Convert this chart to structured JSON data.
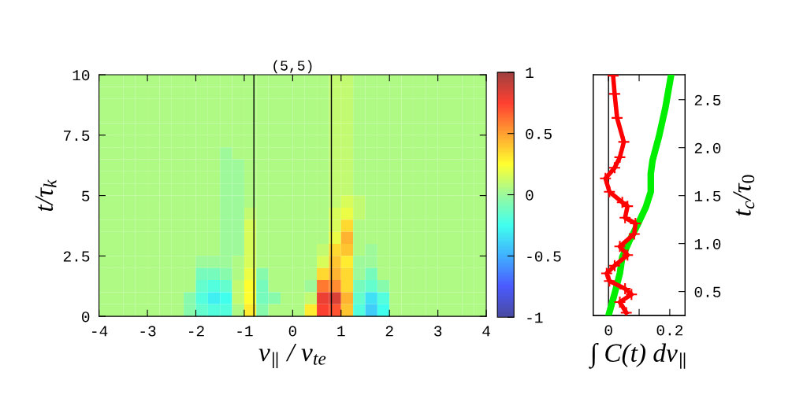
{
  "chart_data": [
    {
      "type": "heatmap",
      "title": "(5,5)",
      "xlabel": "v$_{∥}$ / v$_{te}$",
      "ylabel": "t/τ$_{k}$",
      "x": [
        -3.875,
        -3.625,
        -3.375,
        -3.125,
        -2.875,
        -2.625,
        -2.375,
        -2.125,
        -1.875,
        -1.625,
        -1.375,
        -1.125,
        -0.875,
        -0.625,
        -0.375,
        -0.125,
        0.125,
        0.375,
        0.625,
        0.875,
        1.125,
        1.375,
        1.625,
        1.875,
        2.125,
        2.375,
        2.625,
        2.875,
        3.125,
        3.375,
        3.625,
        3.875
      ],
      "y": [
        9.75,
        9.25,
        8.75,
        8.25,
        7.75,
        7.25,
        6.75,
        6.25,
        5.75,
        5.25,
        4.75,
        4.25,
        3.75,
        3.25,
        2.75,
        2.25,
        1.75,
        1.25,
        0.75,
        0.25
      ],
      "cells": [
        [
          0.05,
          0.05,
          0.05,
          0.05,
          0.05,
          0.05,
          0.05,
          0.05,
          0.05,
          0.05,
          0.05,
          0.05,
          0.05,
          0.05,
          0.05,
          0.05,
          0.05,
          0.05,
          0.05,
          0.1,
          0.1,
          0.05,
          0.05,
          0.05,
          0.05,
          0.05,
          0.05,
          0.05,
          0.05,
          0.05,
          0.05,
          0.05
        ],
        [
          0.05,
          0.05,
          0.05,
          0.05,
          0.05,
          0.05,
          0.05,
          0.05,
          0.05,
          0.05,
          0.05,
          0.05,
          0.05,
          0.05,
          0.05,
          0.05,
          0.05,
          0.05,
          0.05,
          0.1,
          0.1,
          0.05,
          0.05,
          0.05,
          0.05,
          0.05,
          0.05,
          0.05,
          0.05,
          0.05,
          0.05,
          0.05
        ],
        [
          0.05,
          0.05,
          0.05,
          0.05,
          0.05,
          0.05,
          0.05,
          0.05,
          0.05,
          0.05,
          0.05,
          0.05,
          0.05,
          0.05,
          0.05,
          0.05,
          0.05,
          0.05,
          0.05,
          0.1,
          0.1,
          0.05,
          0.05,
          0.05,
          0.05,
          0.05,
          0.05,
          0.05,
          0.05,
          0.05,
          0.05,
          0.05
        ],
        [
          0.05,
          0.05,
          0.05,
          0.05,
          0.05,
          0.05,
          0.05,
          0.05,
          0.05,
          0.05,
          0.05,
          0.05,
          0.05,
          0.05,
          0.05,
          0.05,
          0.05,
          0.05,
          0.05,
          0.1,
          0.1,
          0.05,
          0.05,
          0.05,
          0.05,
          0.05,
          0.05,
          0.05,
          0.05,
          0.05,
          0.05,
          0.05
        ],
        [
          0.05,
          0.05,
          0.05,
          0.05,
          0.05,
          0.05,
          0.05,
          0.05,
          0.05,
          0.05,
          0.05,
          0.05,
          0.05,
          0.05,
          0.05,
          0.05,
          0.05,
          0.05,
          0.05,
          0.1,
          0.1,
          0.05,
          0.05,
          0.05,
          0.05,
          0.05,
          0.05,
          0.05,
          0.05,
          0.05,
          0.05,
          0.05
        ],
        [
          0.05,
          0.05,
          0.05,
          0.05,
          0.05,
          0.05,
          0.05,
          0.05,
          0.05,
          0.05,
          0.05,
          0.05,
          0.05,
          0.05,
          0.05,
          0.05,
          0.05,
          0.05,
          0.05,
          0.1,
          0.1,
          0.05,
          0.05,
          0.05,
          0.05,
          0.05,
          0.05,
          0.05,
          0.05,
          0.05,
          0.05,
          0.05
        ],
        [
          0.05,
          0.05,
          0.05,
          0.05,
          0.05,
          0.05,
          0.05,
          0.05,
          0.05,
          0.05,
          0,
          0.05,
          0.05,
          0.05,
          0.05,
          0.05,
          0.05,
          0.05,
          0.05,
          0.1,
          0.1,
          0.05,
          0.05,
          0.05,
          0.05,
          0.05,
          0.05,
          0.05,
          0.05,
          0.05,
          0.05,
          0.05
        ],
        [
          0.05,
          0.05,
          0.05,
          0.05,
          0.05,
          0.05,
          0.05,
          0.05,
          0.05,
          0.05,
          0,
          0,
          0.05,
          0.05,
          0.05,
          0.05,
          0.05,
          0.05,
          0.05,
          0.1,
          0.1,
          0.05,
          0.05,
          0.05,
          0.05,
          0.05,
          0.05,
          0.05,
          0.05,
          0.05,
          0.05,
          0.05
        ],
        [
          0.05,
          0.05,
          0.05,
          0.05,
          0.05,
          0.05,
          0.05,
          0.05,
          0.05,
          0.05,
          0,
          0,
          0.05,
          0.05,
          0.05,
          0.05,
          0.05,
          0.05,
          0.05,
          0.1,
          0.1,
          0.05,
          0.05,
          0.05,
          0.05,
          0.05,
          0.05,
          0.05,
          0.05,
          0.05,
          0.05,
          0.05
        ],
        [
          0.05,
          0.05,
          0.05,
          0.05,
          0.05,
          0.05,
          0.05,
          0.05,
          0.05,
          0.05,
          0,
          0,
          0.05,
          0.05,
          0.05,
          0.05,
          0.05,
          0.05,
          0.05,
          0.1,
          0.1,
          0.05,
          0.05,
          0.05,
          0.05,
          0.05,
          0.05,
          0.05,
          0.05,
          0.05,
          0.05,
          0.05
        ],
        [
          0.05,
          0.05,
          0.05,
          0.05,
          0.05,
          0.05,
          0.05,
          0.05,
          0.05,
          0.05,
          0,
          0,
          0.05,
          0.05,
          0.05,
          0.05,
          0.05,
          0.05,
          0.05,
          0.1,
          0.15,
          0.1,
          0.05,
          0.05,
          0.05,
          0.05,
          0.05,
          0.05,
          0.05,
          0.05,
          0.05,
          0.05
        ],
        [
          0.05,
          0.05,
          0.05,
          0.05,
          0.05,
          0.05,
          0.05,
          0.05,
          0.05,
          0.05,
          0,
          0,
          0.1,
          0.05,
          0.05,
          0.05,
          0.05,
          0.05,
          0.05,
          0.15,
          0.2,
          0.1,
          0.05,
          0.05,
          0.05,
          0.05,
          0.05,
          0.05,
          0.05,
          0.05,
          0.05,
          0.05
        ],
        [
          0.05,
          0.05,
          0.05,
          0.05,
          0.05,
          0.05,
          0.05,
          0.05,
          0.05,
          0.05,
          0,
          0,
          0.15,
          0.05,
          0.05,
          0.05,
          0.05,
          0.05,
          0.05,
          0.15,
          0.35,
          0.05,
          0.05,
          0.05,
          0.05,
          0.05,
          0.05,
          0.05,
          0.05,
          0.05,
          0.05,
          0.05
        ],
        [
          0.05,
          0.05,
          0.05,
          0.05,
          0.05,
          0.05,
          0.05,
          0.05,
          0.05,
          0.05,
          0,
          0,
          0.15,
          0.05,
          0.05,
          0.05,
          0.05,
          0.05,
          0.05,
          0.2,
          0.45,
          0.05,
          0.05,
          0.05,
          0.05,
          0.05,
          0.05,
          0.05,
          0.05,
          0.05,
          0.05,
          0.05
        ],
        [
          0.05,
          0.05,
          0.05,
          0.05,
          0.05,
          0.05,
          0.05,
          0.05,
          0.05,
          0.05,
          0,
          0,
          0.15,
          0.05,
          0.05,
          0.05,
          0.05,
          0.05,
          0.1,
          0.35,
          0.4,
          0.05,
          0,
          0.05,
          0.05,
          0.05,
          0.05,
          0.05,
          0.05,
          0.05,
          0.05,
          0.05
        ],
        [
          0.05,
          0.05,
          0.05,
          0.05,
          0.05,
          0.05,
          0.05,
          0.05,
          0,
          0,
          0,
          0.05,
          0.15,
          0.05,
          0.05,
          0.05,
          0.05,
          0.05,
          0.15,
          0.4,
          0.3,
          0,
          0,
          0.05,
          0.05,
          0.05,
          0.05,
          0.05,
          0.05,
          0.05,
          0.05,
          0.05
        ],
        [
          0.05,
          0.05,
          0.05,
          0.05,
          0.05,
          0.05,
          0.05,
          0.05,
          -0.1,
          -0.1,
          -0.05,
          0.05,
          0.2,
          -0.05,
          0.05,
          0.05,
          0.05,
          0.05,
          0.35,
          0.45,
          0.35,
          0,
          -0.1,
          0.05,
          0.05,
          0.05,
          0.05,
          0.05,
          0.05,
          0.05,
          0.05,
          0.05
        ],
        [
          0.05,
          0.05,
          0.05,
          0.05,
          0.05,
          0.05,
          0.05,
          0.05,
          -0.15,
          -0.2,
          -0.15,
          0.1,
          0.25,
          -0.1,
          0.05,
          0.05,
          0.05,
          0,
          0.6,
          0.55,
          0.35,
          -0.1,
          -0.15,
          -0.05,
          0.05,
          0.05,
          0.05,
          0.05,
          0.05,
          0.05,
          0.05,
          0.05
        ],
        [
          0.05,
          0.05,
          0.05,
          0.05,
          0.05,
          0.05,
          0.05,
          -0.05,
          -0.2,
          -0.3,
          -0.25,
          0.1,
          0.25,
          -0.1,
          -0.05,
          0.05,
          0.05,
          0.1,
          0.8,
          0.85,
          0.45,
          -0.15,
          -0.35,
          -0.2,
          0.05,
          0.05,
          0.05,
          0.05,
          0.05,
          0.05,
          0.05,
          0.05
        ],
        [
          0.05,
          0.05,
          0.05,
          0.05,
          0.05,
          0.05,
          0.05,
          -0.05,
          -0.15,
          -0.2,
          -0.2,
          0.05,
          0.3,
          -0.05,
          0.05,
          0.05,
          0.05,
          0.3,
          0.75,
          0.7,
          0.4,
          -0.2,
          -0.4,
          -0.25,
          0.05,
          0.05,
          0.05,
          0.05,
          0.05,
          0.05,
          0.05,
          0.05
        ]
      ],
      "xlim": [
        -4,
        4
      ],
      "xticks": [
        -4,
        -3,
        -2,
        -1,
        0,
        1,
        2,
        3,
        4
      ],
      "ylim": [
        0,
        10
      ],
      "yticks": [
        0,
        2.5,
        5,
        7.5,
        10
      ],
      "clim": [
        -1,
        1
      ],
      "cticks": [
        -1,
        -0.5,
        0,
        0.5,
        1
      ],
      "ref_lines": [
        {
          "axis": "x",
          "value": -0.8,
          "color": "#000000"
        },
        {
          "axis": "x",
          "value": 0.8,
          "color": "#000000"
        }
      ]
    },
    {
      "type": "line",
      "xlabel": "∫ C(t) dv$_{∥}$",
      "y2label": "t$_{c}$/τ$_{0}$",
      "xlim": [
        -0.05,
        0.25
      ],
      "xticks": [
        0,
        {
          "value": 0.1,
          "label": null
        },
        0.2
      ],
      "y2lim": [
        0.25,
        2.76
      ],
      "y2ticks": [
        {
          "value": 0.5,
          "label": "0.5"
        },
        {
          "value": 1,
          "label": "1.0"
        },
        {
          "value": 1.5,
          "label": "1.5"
        },
        {
          "value": 2,
          "label": "2.0"
        },
        {
          "value": 2.5,
          "label": "2.5"
        }
      ],
      "ref_lines": [
        {
          "axis": "x",
          "value": 0,
          "color": "#000000"
        }
      ],
      "series": [
        {
          "color": "#ff0000",
          "axis": "y2",
          "marker": "cross",
          "x": [
            0.058,
            0.037,
            0.075,
            0.054,
            0.003,
            -0.006,
            0.02,
            0.062,
            0.037,
            0.084,
            0.088,
            0.054,
            0.062,
            0.045,
            0.003,
            -0.01,
            0.02,
            0.037,
            0.05,
            0.028,
            0.02,
            0.015
          ],
          "values": [
            0.28,
            0.39,
            0.47,
            0.53,
            0.61,
            0.69,
            0.77,
            0.88,
            0.97,
            1.1,
            1.21,
            1.27,
            1.39,
            1.43,
            1.54,
            1.68,
            1.79,
            1.9,
            2.06,
            2.31,
            2.56,
            2.75
          ]
        },
        {
          "color": "#00ee00",
          "axis": "y2",
          "marker": "none",
          "x": [
            0,
            0.02,
            0.037,
            0.045,
            0.067,
            0.097,
            0.122,
            0.138,
            0.138,
            0.144,
            0.165,
            0.186,
            0.204
          ],
          "values": [
            0.25,
            0.48,
            0.69,
            0.86,
            1.02,
            1.21,
            1.38,
            1.54,
            1.73,
            1.87,
            2.12,
            2.42,
            2.75
          ]
        }
      ]
    }
  ]
}
